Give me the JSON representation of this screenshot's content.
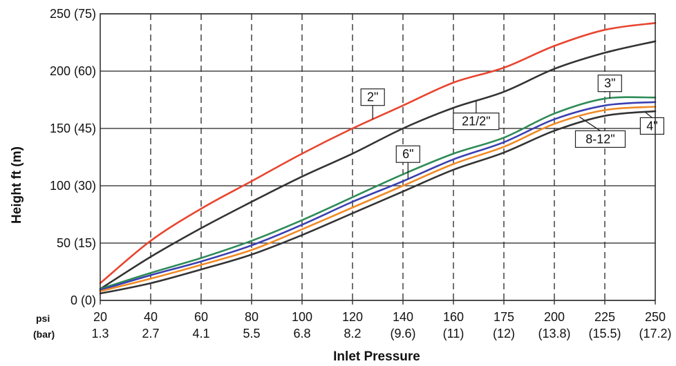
{
  "chart_data": {
    "type": "line",
    "xlabel": "Inlet Pressure",
    "ylabel": "Height ft (m)",
    "x_unit_labels": [
      "psi",
      "(bar)"
    ],
    "x": [
      20,
      40,
      60,
      80,
      100,
      120,
      140,
      160,
      175,
      200,
      225,
      250
    ],
    "x_tick_psi": [
      "20",
      "40",
      "60",
      "80",
      "100",
      "120",
      "140",
      "160",
      "175",
      "200",
      "225",
      "250"
    ],
    "x_tick_bar": [
      "1.3",
      "2.7",
      "4.1",
      "5.5",
      "6.8",
      "8.2",
      "(9.6)",
      "(11)",
      "(12)",
      "(13.8)",
      "(15.5)",
      "(17.2)"
    ],
    "y_ticks": [
      0,
      50,
      100,
      150,
      200,
      250
    ],
    "y_tick_labels": [
      "0 (0)",
      "50 (15)",
      "100 (30)",
      "150 (45)",
      "200 (60)",
      "250 (75)"
    ],
    "ylim": [
      0,
      250
    ],
    "grid": {
      "vertical_dashed": true,
      "horizontal_solid": true
    },
    "series": [
      {
        "name": "2\"",
        "color": "#e8452f",
        "values": [
          15,
          52,
          80,
          104,
          128,
          150,
          170,
          190,
          203,
          222,
          236,
          242
        ]
      },
      {
        "name": "2½\"",
        "color": "#333333",
        "values": [
          10,
          38,
          63,
          86,
          108,
          128,
          150,
          168,
          182,
          202,
          216,
          226
        ]
      },
      {
        "name": "3\"",
        "color": "#2e8b57",
        "values": [
          10,
          24,
          37,
          52,
          70,
          90,
          110,
          128,
          142,
          163,
          176,
          177
        ]
      },
      {
        "name": "6\"",
        "color": "#3a3fb0",
        "values": [
          9,
          22,
          34,
          48,
          66,
          86,
          104,
          123,
          138,
          158,
          170,
          173
        ]
      },
      {
        "name": "8-12\"",
        "color": "#f08a24",
        "values": [
          8,
          19,
          31,
          44,
          62,
          81,
          100,
          119,
          134,
          154,
          166,
          169
        ]
      },
      {
        "name": "4\"",
        "color": "#333333",
        "values": [
          6,
          15,
          27,
          40,
          57,
          76,
          95,
          114,
          129,
          148,
          161,
          165
        ]
      }
    ],
    "callouts": [
      {
        "text": "2\"",
        "series": 0
      },
      {
        "text": "21/2\"",
        "series": 1
      },
      {
        "text": "3\"",
        "series": 2
      },
      {
        "text": "6\"",
        "series": 3
      },
      {
        "text": "8-12\"",
        "series": 4
      },
      {
        "text": "4\"",
        "series": 5
      }
    ]
  }
}
